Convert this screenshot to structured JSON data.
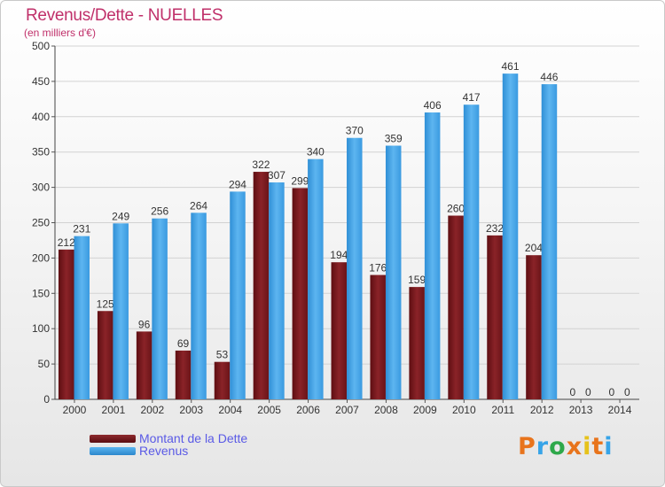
{
  "title": "Revenus/Dette - NUELLES",
  "subtitle": "(en milliers d'€)",
  "logo": {
    "text": "Proxiti",
    "colors": [
      "#e8741c",
      "#37a4e8",
      "#2ea84a",
      "#e8741c",
      "#e6c21a",
      "#e8741c",
      "#37a4e8"
    ]
  },
  "colors": {
    "dette": "#7a1a1e",
    "revenus": "#3d9ee0",
    "title": "#c0306a",
    "legend_text": "#5a5ae6"
  },
  "chart_data": {
    "type": "bar",
    "categories": [
      "2000",
      "2001",
      "2002",
      "2003",
      "2004",
      "2005",
      "2006",
      "2007",
      "2008",
      "2009",
      "2010",
      "2011",
      "2012",
      "2013",
      "2014"
    ],
    "series": [
      {
        "name": "Montant de la Dette",
        "values": [
          212,
          125,
          96,
          69,
          53,
          322,
          299,
          194,
          176,
          159,
          260,
          232,
          204,
          0,
          0
        ]
      },
      {
        "name": "Revenus",
        "values": [
          231,
          249,
          256,
          264,
          294,
          307,
          340,
          370,
          359,
          406,
          417,
          461,
          446,
          0,
          0
        ]
      }
    ],
    "ylim": [
      0,
      500
    ],
    "yticks": [
      0,
      50,
      100,
      150,
      200,
      250,
      300,
      350,
      400,
      450,
      500
    ],
    "grid": true,
    "legend_position": "bottom-left"
  }
}
